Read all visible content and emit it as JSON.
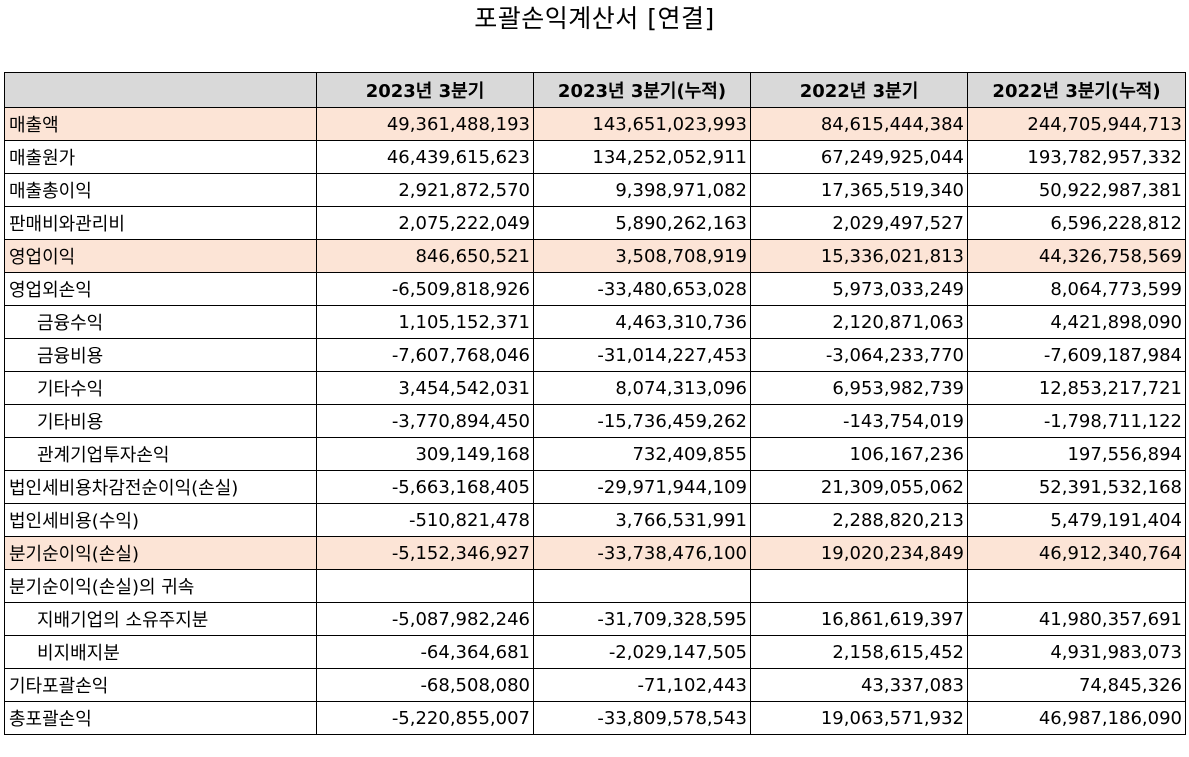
{
  "title": "포괄손익계산서 [연결]",
  "colors": {
    "header_bg": "#d9d9d9",
    "highlight_bg": "#fce4d6",
    "border": "#000000"
  },
  "table": {
    "corner": "",
    "columns": [
      "2023년 3분기",
      "2023년 3분기(누적)",
      "2022년 3분기",
      "2022년 3분기(누적)"
    ],
    "rows": [
      {
        "label": "매출액",
        "values": [
          "49,361,488,193",
          "143,651,023,993",
          "84,615,444,384",
          "244,705,944,713"
        ]
      },
      {
        "label": "매출원가",
        "values": [
          "46,439,615,623",
          "134,252,052,911",
          "67,249,925,044",
          "193,782,957,332"
        ]
      },
      {
        "label": "매출총이익",
        "values": [
          "2,921,872,570",
          "9,398,971,082",
          "17,365,519,340",
          "50,922,987,381"
        ]
      },
      {
        "label": "판매비와관리비",
        "values": [
          "2,075,222,049",
          "5,890,262,163",
          "2,029,497,527",
          "6,596,228,812"
        ]
      },
      {
        "label": "영업이익",
        "values": [
          "846,650,521",
          "3,508,708,919",
          "15,336,021,813",
          "44,326,758,569"
        ]
      },
      {
        "label": "영업외손익",
        "values": [
          "-6,509,818,926",
          "-33,480,653,028",
          "5,973,033,249",
          "8,064,773,599"
        ]
      },
      {
        "label": "금융수익",
        "values": [
          "1,105,152,371",
          "4,463,310,736",
          "2,120,871,063",
          "4,421,898,090"
        ]
      },
      {
        "label": "금융비용",
        "values": [
          "-7,607,768,046",
          "-31,014,227,453",
          "-3,064,233,770",
          "-7,609,187,984"
        ]
      },
      {
        "label": "기타수익",
        "values": [
          "3,454,542,031",
          "8,074,313,096",
          "6,953,982,739",
          "12,853,217,721"
        ]
      },
      {
        "label": "기타비용",
        "values": [
          "-3,770,894,450",
          "-15,736,459,262",
          "-143,754,019",
          "-1,798,711,122"
        ]
      },
      {
        "label": "관계기업투자손익",
        "values": [
          "309,149,168",
          "732,409,855",
          "106,167,236",
          "197,556,894"
        ]
      },
      {
        "label": "법인세비용차감전순이익(손실)",
        "values": [
          "-5,663,168,405",
          "-29,971,944,109",
          "21,309,055,062",
          "52,391,532,168"
        ]
      },
      {
        "label": "법인세비용(수익)",
        "values": [
          "-510,821,478",
          "3,766,531,991",
          "2,288,820,213",
          "5,479,191,404"
        ]
      },
      {
        "label": "분기순이익(손실)",
        "values": [
          "-5,152,346,927",
          "-33,738,476,100",
          "19,020,234,849",
          "46,912,340,764"
        ]
      },
      {
        "label": "분기순이익(손실)의 귀속",
        "values": [
          "",
          "",
          "",
          ""
        ]
      },
      {
        "label": "지배기업의 소유주지분",
        "values": [
          "-5,087,982,246",
          "-31,709,328,595",
          "16,861,619,397",
          "41,980,357,691"
        ]
      },
      {
        "label": "비지배지분",
        "values": [
          "-64,364,681",
          "-2,029,147,505",
          "2,158,615,452",
          "4,931,983,073"
        ]
      },
      {
        "label": "기타포괄손익",
        "values": [
          "-68,508,080",
          "-71,102,443",
          "43,337,083",
          "74,845,326"
        ]
      },
      {
        "label": "총포괄손익",
        "values": [
          "-5,220,855,007",
          "-33,809,578,543",
          "19,063,571,932",
          "46,987,186,090"
        ]
      }
    ]
  }
}
